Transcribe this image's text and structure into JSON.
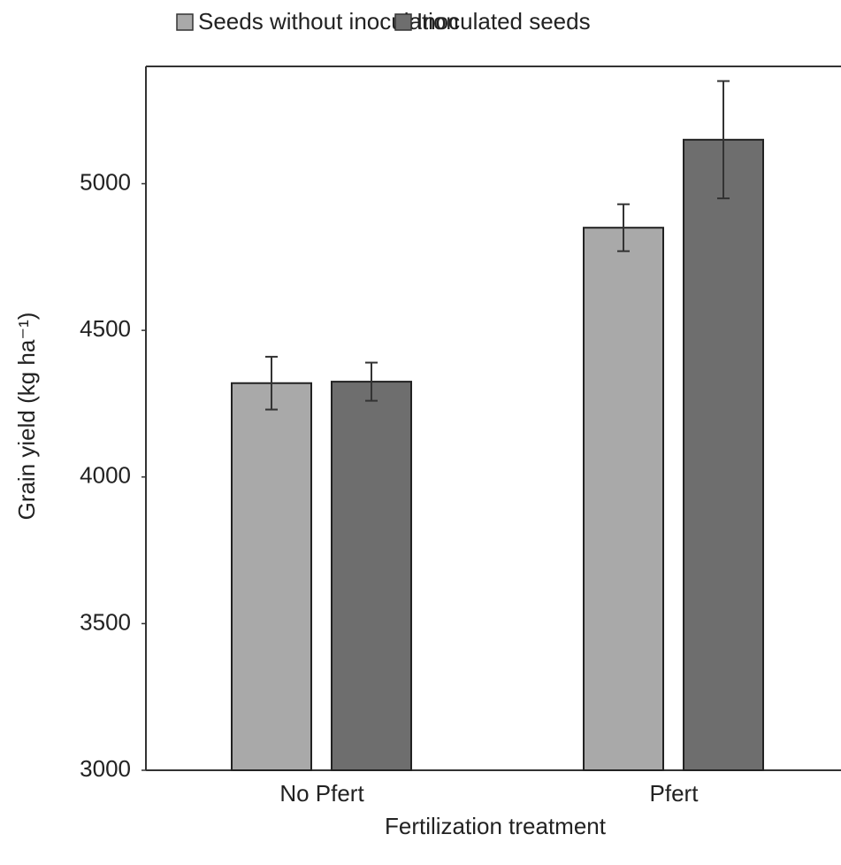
{
  "chart_data": {
    "type": "bar",
    "x_label": "Fertilization treatment",
    "y_label": "Grain yield (kg ha⁻¹)",
    "categories": [
      "No Pfert",
      "Pfert"
    ],
    "series": [
      {
        "name": "Seeds without inoculation",
        "color": "#a9a9a9",
        "values": [
          4320,
          4850
        ],
        "errors": [
          90,
          80
        ]
      },
      {
        "name": "Inoculated seeds",
        "color": "#6e6e6e",
        "values": [
          4325,
          5150
        ],
        "errors": [
          65,
          200
        ]
      }
    ],
    "ylim": [
      3000,
      5400
    ],
    "yticks": [
      3000,
      3500,
      4000,
      4500,
      5000
    ],
    "grid": false,
    "legend": "top"
  }
}
